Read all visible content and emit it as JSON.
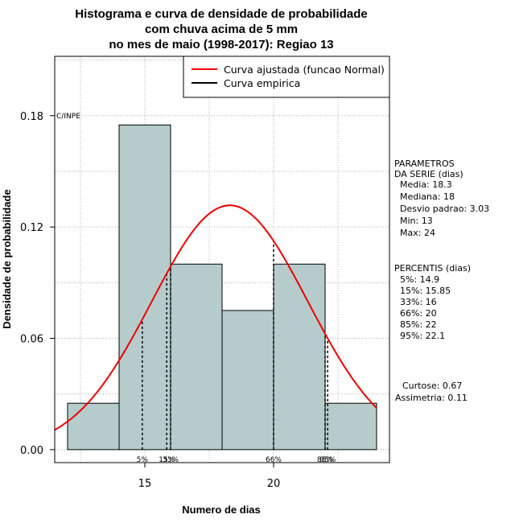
{
  "chart_data": {
    "type": "bar",
    "title": [
      "Histograma e curva de densidade de probabilidade",
      "com chuva acima de 5 mm",
      "no mes de maio (1998-2017): Regiao 13"
    ],
    "xlabel": "Numero de dias",
    "ylabel": "Densidade de probabilidade",
    "xlim": [
      11.5,
      24.5
    ],
    "ylim": [
      -0.007,
      0.212
    ],
    "xticks": [
      15,
      20
    ],
    "yticks": [
      "0.00",
      "0.06",
      "0.12",
      "0.18"
    ],
    "grid": true,
    "bins": [
      {
        "from": 12,
        "to": 14,
        "density": 0.025
      },
      {
        "from": 14,
        "to": 16,
        "density": 0.175
      },
      {
        "from": 16,
        "to": 18,
        "density": 0.1
      },
      {
        "from": 18,
        "to": 20,
        "density": 0.075
      },
      {
        "from": 20,
        "to": 22,
        "density": 0.1
      },
      {
        "from": 22,
        "to": 24,
        "density": 0.025
      }
    ],
    "bar_color": "#b6cccc",
    "normal_curve": {
      "mean": 18.3,
      "sd": 3.03,
      "color": "#ee0000"
    },
    "legend": {
      "position": "top-right",
      "items": [
        {
          "label": "Curva ajustada (funcao Normal)",
          "color": "#ee0000"
        },
        {
          "label": "Curva empirica",
          "color": "#000000"
        }
      ]
    },
    "percentile_lines": [
      {
        "x": 14.9,
        "label": "5%"
      },
      {
        "x": 15.85,
        "label": "15%"
      },
      {
        "x": 16,
        "label": "33%"
      },
      {
        "x": 20,
        "label": "66%"
      },
      {
        "x": 22,
        "label": "85%"
      },
      {
        "x": 22.1,
        "label": "95%"
      }
    ],
    "annotation": "C/INPE",
    "side_panel": {
      "parametros": [
        "PARAMETROS",
        "DA SERIE (dias)",
        "Media: 18.3",
        "Mediana: 18",
        "Desvio padrao: 3.03",
        "Min: 13",
        "Max: 24"
      ],
      "percentis": [
        "PERCENTIS (dias)",
        "5%: 14.9",
        "15%: 15.85",
        "33%: 16",
        "66%: 20",
        "85%: 22",
        "95%: 22.1"
      ],
      "extra": [
        "Curtose: 0.67",
        "Assimetria: 0.11"
      ]
    }
  }
}
